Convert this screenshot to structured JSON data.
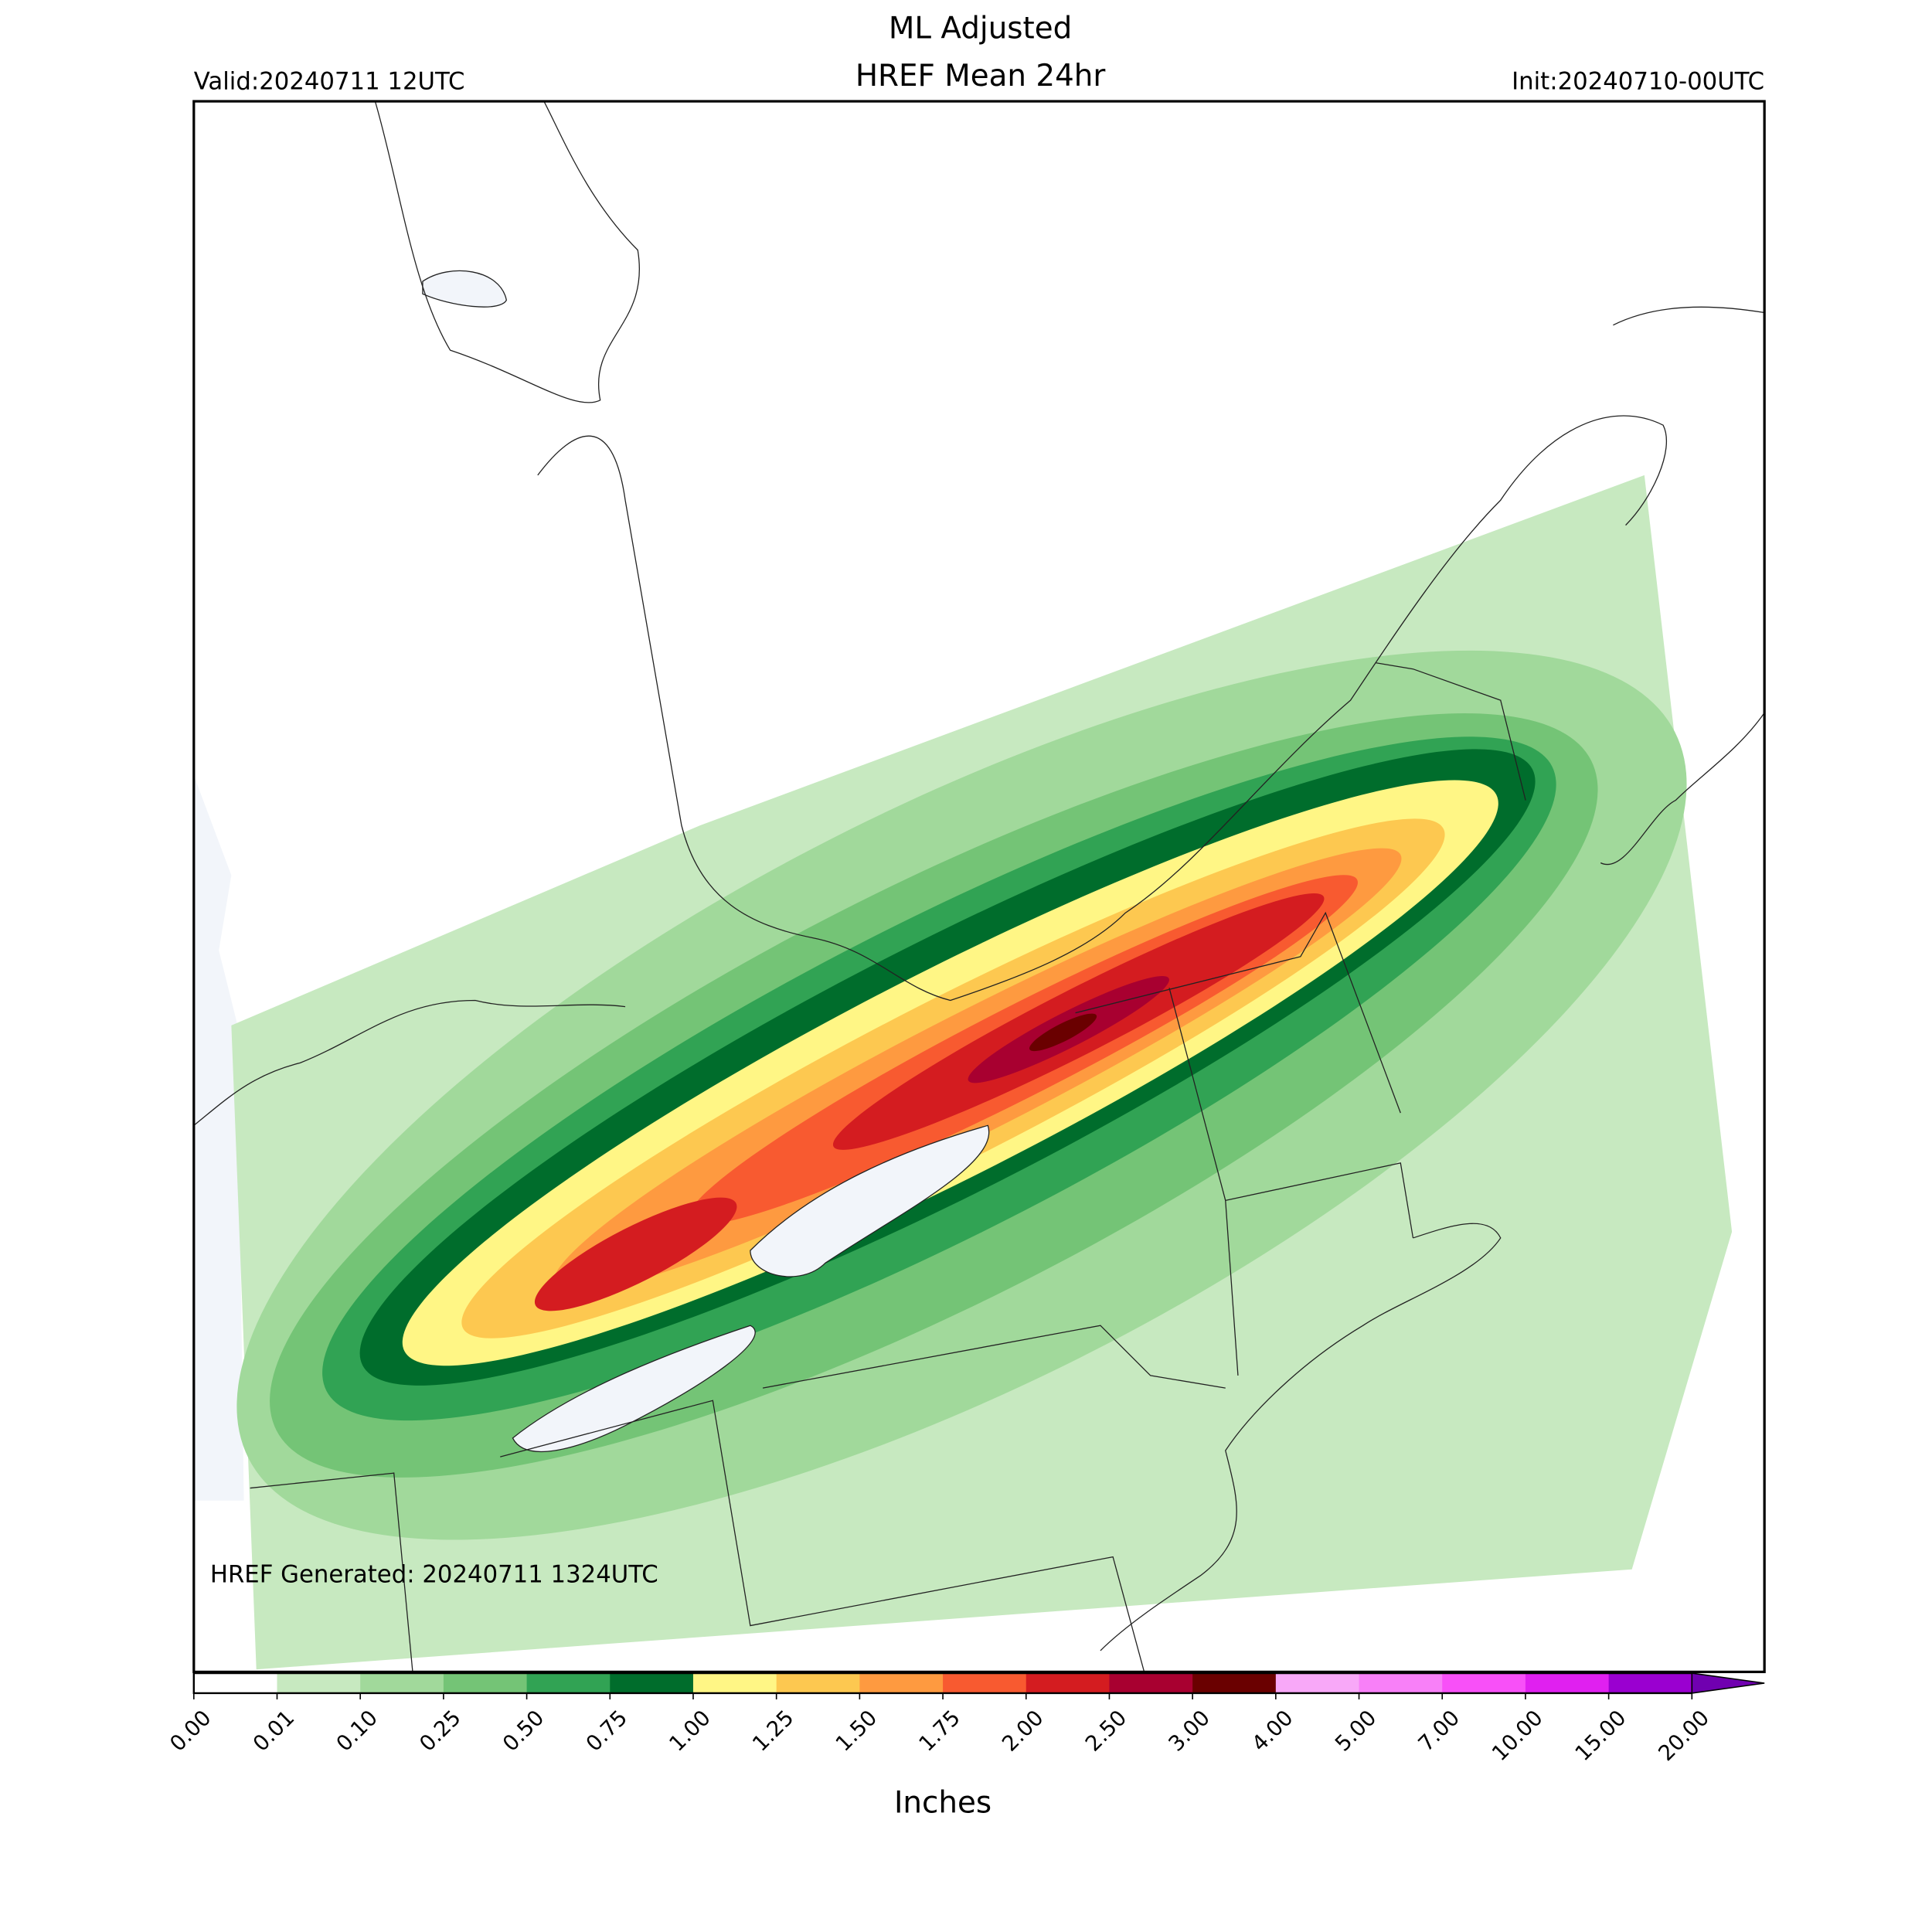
{
  "header": {
    "title": [
      "ML Adjusted",
      "HREF Mean 24hr"
    ],
    "valid": "Valid:20240711 12UTC",
    "init": "Init:20240710-00UTC"
  },
  "map": {
    "generated": "HREF Generated: 20240711 1324UTC"
  },
  "colorbar": {
    "ticks": [
      {
        "value": 0,
        "label": "0.00"
      },
      {
        "value": 0.01,
        "label": "0.01"
      },
      {
        "value": 0.1,
        "label": "0.10"
      },
      {
        "value": 0.25,
        "label": "0.25"
      },
      {
        "value": 0.5,
        "label": "0.50"
      },
      {
        "value": 0.75,
        "label": "0.75"
      },
      {
        "value": 1,
        "label": "1.00"
      },
      {
        "value": 1.25,
        "label": "1.25"
      },
      {
        "value": 1.5,
        "label": "1.50"
      },
      {
        "value": 1.75,
        "label": "1.75"
      },
      {
        "value": 2,
        "label": "2.00"
      },
      {
        "value": 2.5,
        "label": "2.50"
      },
      {
        "value": 3,
        "label": "3.00"
      },
      {
        "value": 4,
        "label": "4.00"
      },
      {
        "value": 5,
        "label": "5.00"
      },
      {
        "value": 7,
        "label": "7.00"
      },
      {
        "value": 10,
        "label": "10.00"
      },
      {
        "value": 15,
        "label": "15.00"
      },
      {
        "value": 20,
        "label": "20.00"
      }
    ],
    "colors": [
      "#ffffff",
      "#c7e9c0",
      "#a1d99b",
      "#74c476",
      "#31a354",
      "#006d2c",
      "#fff685",
      "#fdc850",
      "#fe9a40",
      "#f85a30",
      "#d41c20",
      "#a80030",
      "#6a0000",
      "#f8a8f8",
      "#f880f8",
      "#f850f8",
      "#e020f0",
      "#9a00d0"
    ],
    "extend_color": "#7000b0",
    "label": "Inches"
  }
}
